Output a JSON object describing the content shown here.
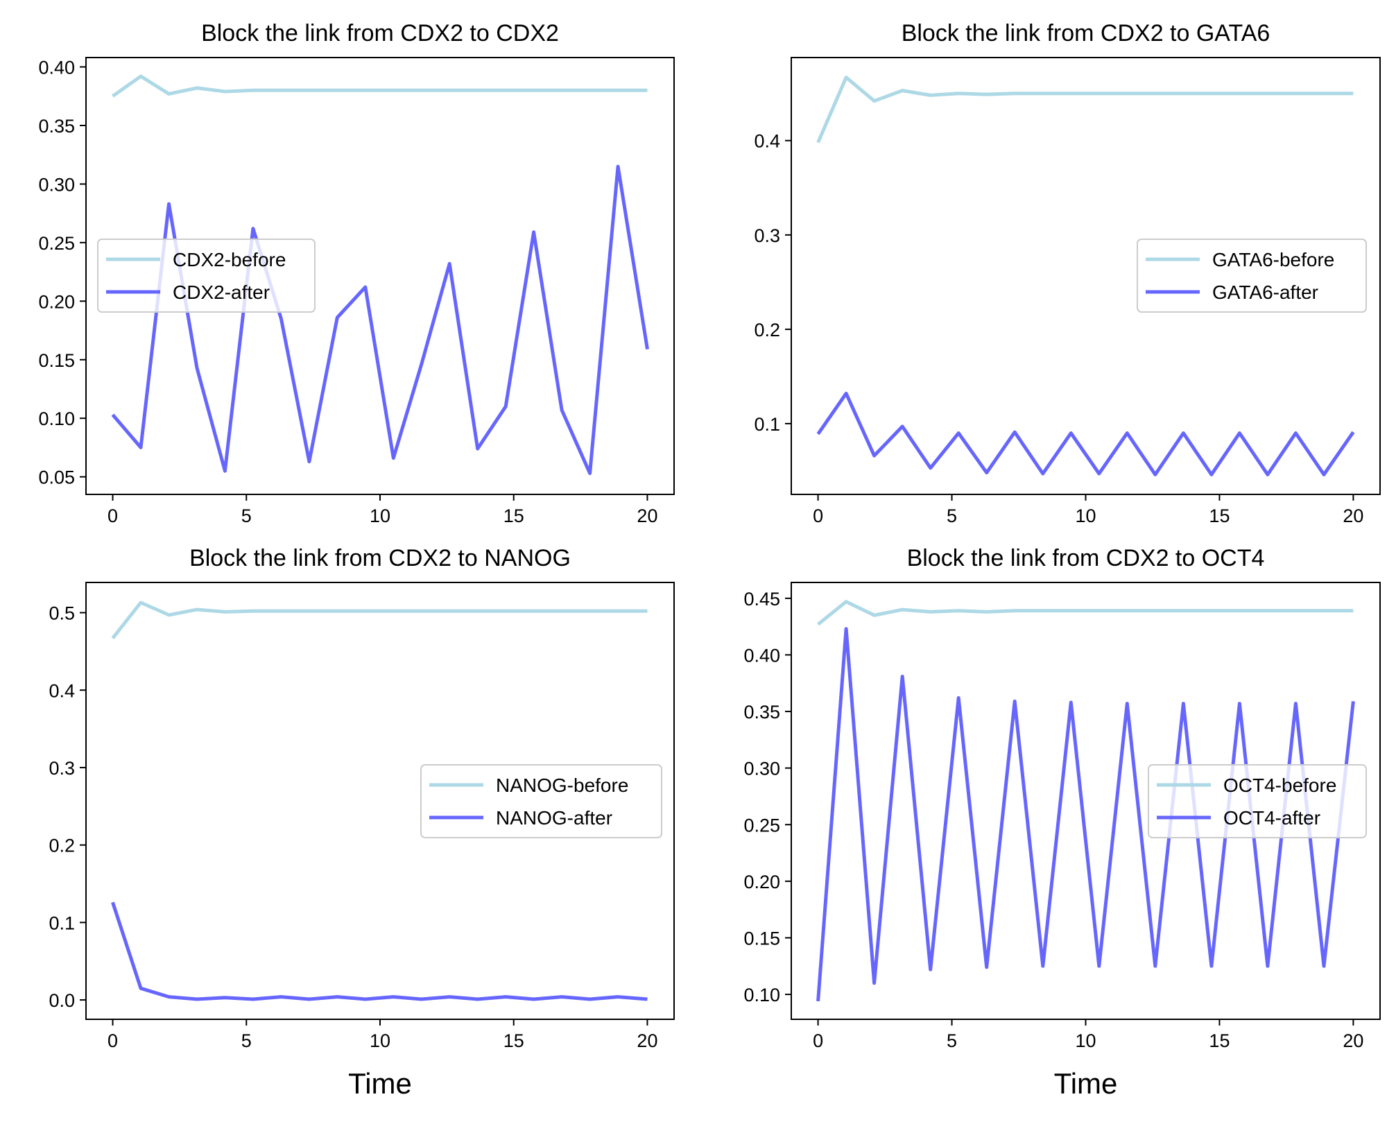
{
  "chart_data": [
    {
      "type": "line",
      "title": "Block the link from CDX2 to CDX2",
      "xlabel": "",
      "ylabel": "",
      "xlim": [
        -1,
        21
      ],
      "ylim": [
        0.035,
        0.408
      ],
      "xticks": [
        0,
        5,
        10,
        15,
        20
      ],
      "xtick_labels": [
        "0",
        "5",
        "10",
        "15",
        "20"
      ],
      "yticks": [
        0.05,
        0.1,
        0.15,
        0.2,
        0.25,
        0.3,
        0.35,
        0.4
      ],
      "ytick_labels": [
        "0.05",
        "0.10",
        "0.15",
        "0.20",
        "0.25",
        "0.30",
        "0.35",
        "0.40"
      ],
      "grid": false,
      "legend": "center-left",
      "x": [
        0,
        1.05,
        2.1,
        3.15,
        4.2,
        5.25,
        6.3,
        7.35,
        8.4,
        9.45,
        10.5,
        11.55,
        12.6,
        13.65,
        14.7,
        15.75,
        16.8,
        17.85,
        18.9,
        20
      ],
      "series": [
        {
          "name": "CDX2-before",
          "color": "#add8e6",
          "values": [
            0.375,
            0.392,
            0.377,
            0.382,
            0.379,
            0.38,
            0.38,
            0.38,
            0.38,
            0.38,
            0.38,
            0.38,
            0.38,
            0.38,
            0.38,
            0.38,
            0.38,
            0.38,
            0.38,
            0.38
          ]
        },
        {
          "name": "CDX2-after",
          "color": "#6666ff",
          "values": [
            0.103,
            0.075,
            0.283,
            0.143,
            0.055,
            0.262,
            0.185,
            0.063,
            0.186,
            0.212,
            0.066,
            0.146,
            0.232,
            0.074,
            0.11,
            0.259,
            0.107,
            0.053,
            0.315,
            0.159
          ]
        }
      ]
    },
    {
      "type": "line",
      "title": "Block the link from CDX2 to GATA6",
      "xlabel": "",
      "ylabel": "",
      "xlim": [
        -1,
        21
      ],
      "ylim": [
        0.025,
        0.488
      ],
      "xticks": [
        0,
        5,
        10,
        15,
        20
      ],
      "xtick_labels": [
        "0",
        "5",
        "10",
        "15",
        "20"
      ],
      "yticks": [
        0.1,
        0.2,
        0.3,
        0.4
      ],
      "ytick_labels": [
        "0.1",
        "0.2",
        "0.3",
        "0.4"
      ],
      "grid": false,
      "legend": "center-right",
      "x": [
        0,
        1.05,
        2.1,
        3.15,
        4.2,
        5.25,
        6.3,
        7.35,
        8.4,
        9.45,
        10.5,
        11.55,
        12.6,
        13.65,
        14.7,
        15.75,
        16.8,
        17.85,
        18.9,
        20
      ],
      "series": [
        {
          "name": "GATA6-before",
          "color": "#add8e6",
          "values": [
            0.398,
            0.467,
            0.442,
            0.453,
            0.448,
            0.45,
            0.449,
            0.45,
            0.45,
            0.45,
            0.45,
            0.45,
            0.45,
            0.45,
            0.45,
            0.45,
            0.45,
            0.45,
            0.45,
            0.45
          ]
        },
        {
          "name": "GATA6-after",
          "color": "#6666ff",
          "values": [
            0.089,
            0.132,
            0.066,
            0.097,
            0.053,
            0.09,
            0.048,
            0.091,
            0.047,
            0.09,
            0.047,
            0.09,
            0.046,
            0.09,
            0.046,
            0.09,
            0.046,
            0.09,
            0.046,
            0.091
          ]
        }
      ]
    },
    {
      "type": "line",
      "title": "Block the link from CDX2 to NANOG",
      "xlabel": "Time",
      "ylabel": "",
      "xlim": [
        -1,
        21
      ],
      "ylim": [
        -0.025,
        0.539
      ],
      "xticks": [
        0,
        5,
        10,
        15,
        20
      ],
      "xtick_labels": [
        "0",
        "5",
        "10",
        "15",
        "20"
      ],
      "yticks": [
        0.0,
        0.1,
        0.2,
        0.3,
        0.4,
        0.5
      ],
      "ytick_labels": [
        "0.0",
        "0.1",
        "0.2",
        "0.3",
        "0.4",
        "0.5"
      ],
      "grid": false,
      "legend": "center-right",
      "x": [
        0,
        1.05,
        2.1,
        3.15,
        4.2,
        5.25,
        6.3,
        7.35,
        8.4,
        9.45,
        10.5,
        11.55,
        12.6,
        13.65,
        14.7,
        15.75,
        16.8,
        17.85,
        18.9,
        20
      ],
      "series": [
        {
          "name": "NANOG-before",
          "color": "#add8e6",
          "values": [
            0.467,
            0.513,
            0.497,
            0.504,
            0.501,
            0.502,
            0.502,
            0.502,
            0.502,
            0.502,
            0.502,
            0.502,
            0.502,
            0.502,
            0.502,
            0.502,
            0.502,
            0.502,
            0.502,
            0.502
          ]
        },
        {
          "name": "NANOG-after",
          "color": "#6666ff",
          "values": [
            0.126,
            0.015,
            0.004,
            0.001,
            0.003,
            0.001,
            0.004,
            0.001,
            0.004,
            0.001,
            0.004,
            0.001,
            0.004,
            0.001,
            0.004,
            0.001,
            0.004,
            0.001,
            0.004,
            0.001
          ]
        }
      ]
    },
    {
      "type": "line",
      "title": "Block the link from CDX2 to OCT4",
      "xlabel": "Time",
      "ylabel": "",
      "xlim": [
        -1,
        21
      ],
      "ylim": [
        0.078,
        0.464
      ],
      "xticks": [
        0,
        5,
        10,
        15,
        20
      ],
      "xtick_labels": [
        "0",
        "5",
        "10",
        "15",
        "20"
      ],
      "yticks": [
        0.1,
        0.15,
        0.2,
        0.25,
        0.3,
        0.35,
        0.4,
        0.45
      ],
      "ytick_labels": [
        "0.10",
        "0.15",
        "0.20",
        "0.25",
        "0.30",
        "0.35",
        "0.40",
        "0.45"
      ],
      "grid": false,
      "legend": "center-right",
      "x": [
        0,
        1.05,
        2.1,
        3.15,
        4.2,
        5.25,
        6.3,
        7.35,
        8.4,
        9.45,
        10.5,
        11.55,
        12.6,
        13.65,
        14.7,
        15.75,
        16.8,
        17.85,
        18.9,
        20
      ],
      "series": [
        {
          "name": "OCT4-before",
          "color": "#add8e6",
          "values": [
            0.427,
            0.447,
            0.435,
            0.44,
            0.438,
            0.439,
            0.438,
            0.439,
            0.439,
            0.439,
            0.439,
            0.439,
            0.439,
            0.439,
            0.439,
            0.439,
            0.439,
            0.439,
            0.439,
            0.439
          ]
        },
        {
          "name": "OCT4-after",
          "color": "#6666ff",
          "values": [
            0.094,
            0.423,
            0.11,
            0.381,
            0.122,
            0.362,
            0.124,
            0.359,
            0.125,
            0.358,
            0.125,
            0.357,
            0.125,
            0.357,
            0.125,
            0.357,
            0.125,
            0.357,
            0.125,
            0.359
          ]
        }
      ]
    }
  ]
}
